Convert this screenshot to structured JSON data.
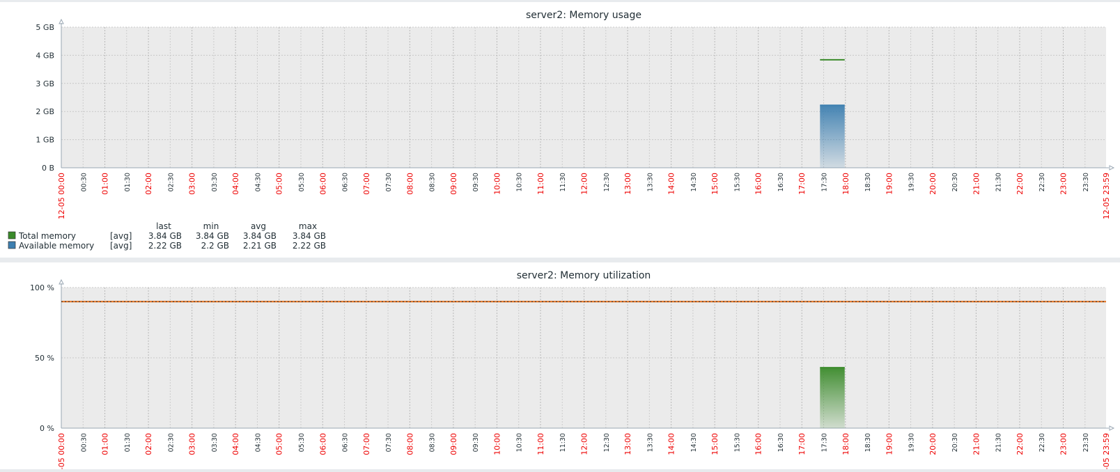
{
  "chart_data": [
    {
      "type": "area",
      "title": "server2: Memory usage",
      "x_range": [
        "00:00",
        "23:59"
      ],
      "date_labels": [
        "12-05 00:00",
        "12-05 23:59"
      ],
      "x_ticks": [
        "00:30",
        "01:00",
        "01:30",
        "02:00",
        "02:30",
        "03:00",
        "03:30",
        "04:00",
        "04:30",
        "05:00",
        "05:30",
        "06:00",
        "06:30",
        "07:00",
        "07:30",
        "08:00",
        "08:30",
        "09:00",
        "09:30",
        "10:00",
        "10:30",
        "11:00",
        "11:30",
        "12:00",
        "12:30",
        "13:00",
        "13:30",
        "14:00",
        "14:30",
        "15:00",
        "15:30",
        "16:00",
        "16:30",
        "17:00",
        "17:30",
        "18:00",
        "18:30",
        "19:00",
        "19:30",
        "20:00",
        "20:30",
        "21:00",
        "21:30",
        "22:00",
        "22:30",
        "23:00",
        "23:30"
      ],
      "y_ticks": [
        "0 B",
        "1 GB",
        "2 GB",
        "3 GB",
        "4 GB",
        "5 GB"
      ],
      "ylim": [
        0,
        5
      ],
      "grid": true,
      "legend_position": "bottom-left",
      "legend_headers": [
        "last",
        "min",
        "avg",
        "max"
      ],
      "series": [
        {
          "name": "Total memory",
          "func": "[avg]",
          "color": "#3a8a2a",
          "style": "line",
          "x": [
            "17:25",
            "17:59"
          ],
          "values": [
            3.84,
            3.84
          ],
          "last": "3.84 GB",
          "min": "3.84 GB",
          "avg": "3.84 GB",
          "max": "3.84 GB"
        },
        {
          "name": "Available memory",
          "func": "[avg]",
          "color": "#3d7fb0",
          "style": "filled",
          "x": [
            "17:25",
            "17:59"
          ],
          "values": [
            2.22,
            2.22
          ],
          "last": "2.22 GB",
          "min": "2.2 GB",
          "avg": "2.21 GB",
          "max": "2.22 GB"
        }
      ]
    },
    {
      "type": "area",
      "title": "server2: Memory utilization",
      "x_range": [
        "00:00",
        "23:59"
      ],
      "date_labels": [
        "-05 00:00",
        "-05 23:59"
      ],
      "x_ticks": [
        "00:30",
        "01:00",
        "01:30",
        "02:00",
        "02:30",
        "03:00",
        "03:30",
        "04:00",
        "04:30",
        "05:00",
        "05:30",
        "06:00",
        "06:30",
        "07:00",
        "07:30",
        "08:00",
        "08:30",
        "09:00",
        "09:30",
        "10:00",
        "10:30",
        "11:00",
        "11:30",
        "12:00",
        "12:30",
        "13:00",
        "13:30",
        "14:00",
        "14:30",
        "15:00",
        "15:30",
        "16:00",
        "16:30",
        "17:00",
        "17:30",
        "18:00",
        "18:30",
        "19:00",
        "19:30",
        "20:00",
        "20:30",
        "21:00",
        "21:30",
        "22:00",
        "22:30",
        "23:00",
        "23:30"
      ],
      "y_ticks": [
        "0 %",
        "50 %",
        "100 %"
      ],
      "ylim": [
        0,
        100
      ],
      "grid": true,
      "threshold": {
        "value": 90,
        "color": "#e8701a"
      },
      "series": [
        {
          "color": "#3a8a2a",
          "style": "filled",
          "x": [
            "17:25",
            "17:59"
          ],
          "values": [
            43,
            43
          ]
        }
      ]
    }
  ]
}
